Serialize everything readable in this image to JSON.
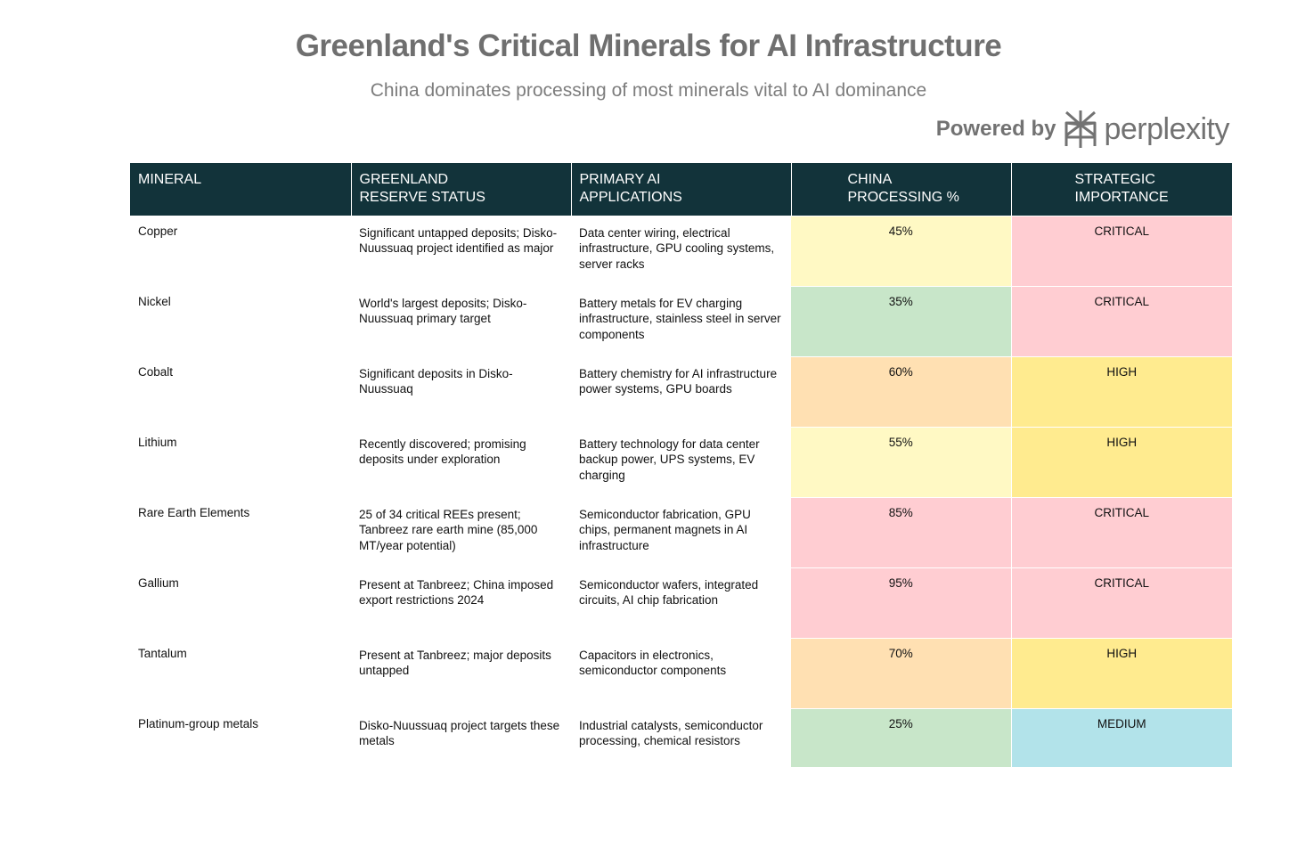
{
  "chart_data": {
    "type": "table",
    "title": "Greenland's Critical Minerals for AI Infrastructure",
    "subtitle": "China dominates processing of most minerals vital to AI dominance",
    "columns": [
      "MINERAL",
      "GREENLAND\nRESERVE STATUS",
      "PRIMARY AI\nAPPLICATIONS",
      "CHINA\nPROCESSING %",
      "STRATEGIC\nIMPORTANCE"
    ],
    "rows": [
      {
        "mineral": "Copper",
        "reserve": "Significant untapped deposits; Disko-Nuussuaq project identified as major",
        "applications": "Data center wiring, electrical infrastructure, GPU cooling systems, server racks",
        "china_pct": "45%",
        "china_value": 45,
        "importance": "CRITICAL"
      },
      {
        "mineral": "Nickel",
        "reserve": "World's largest deposits; Disko-Nuussuaq primary target",
        "applications": "Battery metals for EV charging infrastructure, stainless steel in server components",
        "china_pct": "35%",
        "china_value": 35,
        "importance": "CRITICAL"
      },
      {
        "mineral": "Cobalt",
        "reserve": "Significant deposits in Disko-Nuussuaq",
        "applications": "Battery chemistry for AI infrastructure power systems, GPU boards",
        "china_pct": "60%",
        "china_value": 60,
        "importance": "HIGH"
      },
      {
        "mineral": "Lithium",
        "reserve": "Recently discovered; promising deposits under exploration",
        "applications": "Battery technology for data center backup power, UPS systems, EV charging",
        "china_pct": "55%",
        "china_value": 55,
        "importance": "HIGH"
      },
      {
        "mineral": "Rare Earth Elements",
        "reserve": "25 of 34 critical REEs present; Tanbreez rare earth mine (85,000 MT/year potential)",
        "applications": "Semiconductor fabrication, GPU chips, permanent magnets in AI infrastructure",
        "china_pct": "85%",
        "china_value": 85,
        "importance": "CRITICAL"
      },
      {
        "mineral": "Gallium",
        "reserve": "Present at Tanbreez; China imposed export restrictions 2024",
        "applications": "Semiconductor wafers, integrated circuits, AI chip fabrication",
        "china_pct": "95%",
        "china_value": 95,
        "importance": "CRITICAL"
      },
      {
        "mineral": "Tantalum",
        "reserve": "Present at Tanbreez; major deposits untapped",
        "applications": "Capacitors in electronics, semiconductor components",
        "china_pct": "70%",
        "china_value": 70,
        "importance": "HIGH"
      },
      {
        "mineral": "Platinum-group metals",
        "reserve": "Disko-Nuussuaq project targets these metals",
        "applications": "Industrial catalysts, semiconductor processing, chemical resistors",
        "china_pct": "25%",
        "china_value": 25,
        "importance": "MEDIUM"
      }
    ]
  },
  "header": {
    "title": "Greenland's Critical Minerals for AI Infrastructure",
    "subtitle": "China dominates processing of most minerals vital to AI dominance",
    "powered_by": "Powered by",
    "brand": "perplexity"
  },
  "colors": {
    "header_bg": "#12333a",
    "pct_low": "#c8e6c9",
    "pct_mid": "#fff9c4",
    "pct_high": "#ffe0b2",
    "pct_very_high": "#ffcdd2",
    "imp_critical": "#ffcdd2",
    "imp_high": "#ffeb8f",
    "imp_medium": "#b2e3ea"
  }
}
